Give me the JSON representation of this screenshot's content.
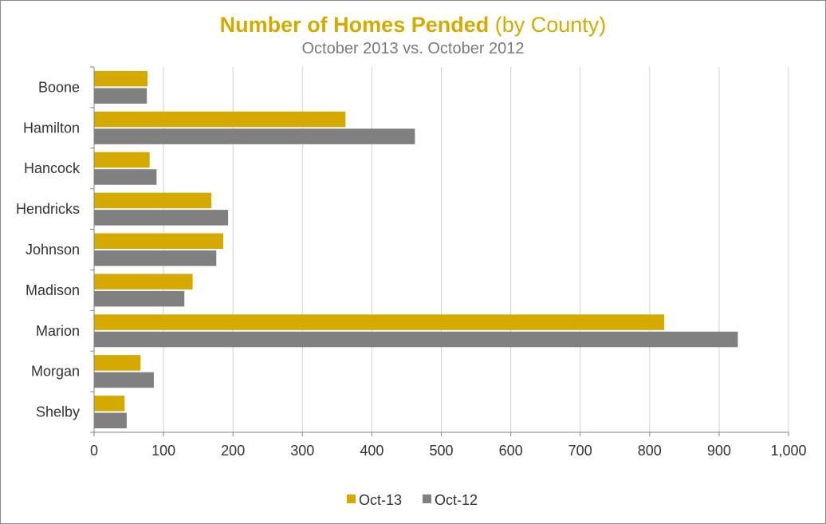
{
  "chart_data": {
    "type": "bar",
    "orientation": "horizontal",
    "title": "Number of Homes Pended",
    "title_suffix": "(by County)",
    "subtitle": "October 2013 vs. October 2012",
    "categories": [
      "Boone",
      "Hamilton",
      "Hancock",
      "Hendricks",
      "Johnson",
      "Madison",
      "Marion",
      "Morgan",
      "Shelby"
    ],
    "series": [
      {
        "name": "Oct-13",
        "color": "#d4aa00",
        "values": [
          77,
          362,
          80,
          169,
          186,
          142,
          821,
          67,
          44
        ]
      },
      {
        "name": "Oct-12",
        "color": "#808080",
        "values": [
          76,
          462,
          90,
          193,
          176,
          130,
          927,
          86,
          47
        ]
      }
    ],
    "xlim": [
      0,
      1000
    ],
    "xticks": [
      0,
      100,
      200,
      300,
      400,
      500,
      600,
      700,
      800,
      900,
      1000
    ],
    "xtick_labels": [
      "0",
      "100",
      "200",
      "300",
      "400",
      "500",
      "600",
      "700",
      "800",
      "900",
      "1,000"
    ],
    "grid": true,
    "legend_position": "bottom"
  }
}
